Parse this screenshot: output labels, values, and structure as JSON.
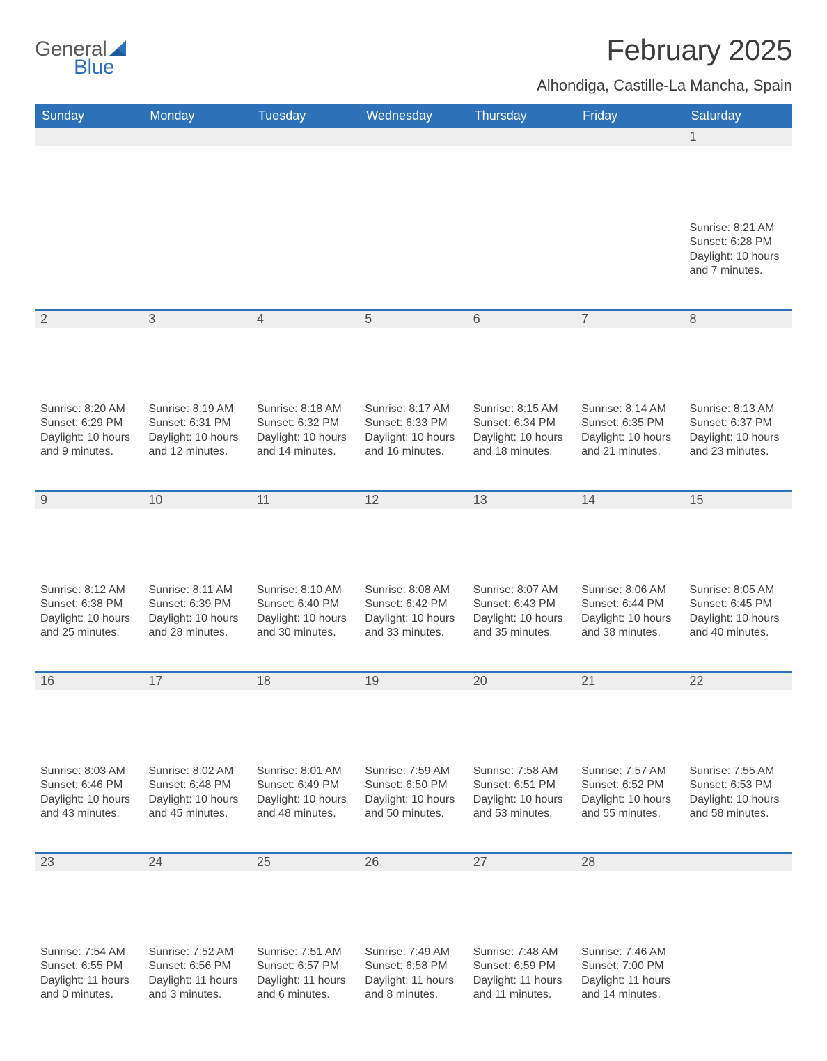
{
  "logo": {
    "text1": "General",
    "text2": "Blue",
    "sail_color": "#2d72b8"
  },
  "title": "February 2025",
  "location": "Alhondiga, Castille-La Mancha, Spain",
  "colors": {
    "header_bg": "#2d72b8",
    "header_text": "#ffffff",
    "daynum_bg": "#eeeeee",
    "daynum_border": "#2d72b8",
    "body_text": "#3c3c3c",
    "background": "#ffffff"
  },
  "weekdays": [
    "Sunday",
    "Monday",
    "Tuesday",
    "Wednesday",
    "Thursday",
    "Friday",
    "Saturday"
  ],
  "labels": {
    "sunrise": "Sunrise:",
    "sunset": "Sunset:",
    "daylight": "Daylight:"
  },
  "weeks": [
    [
      null,
      null,
      null,
      null,
      null,
      null,
      {
        "day": 1,
        "sunrise": "8:21 AM",
        "sunset": "6:28 PM",
        "daylight": "10 hours and 7 minutes."
      }
    ],
    [
      {
        "day": 2,
        "sunrise": "8:20 AM",
        "sunset": "6:29 PM",
        "daylight": "10 hours and 9 minutes."
      },
      {
        "day": 3,
        "sunrise": "8:19 AM",
        "sunset": "6:31 PM",
        "daylight": "10 hours and 12 minutes."
      },
      {
        "day": 4,
        "sunrise": "8:18 AM",
        "sunset": "6:32 PM",
        "daylight": "10 hours and 14 minutes."
      },
      {
        "day": 5,
        "sunrise": "8:17 AM",
        "sunset": "6:33 PM",
        "daylight": "10 hours and 16 minutes."
      },
      {
        "day": 6,
        "sunrise": "8:15 AM",
        "sunset": "6:34 PM",
        "daylight": "10 hours and 18 minutes."
      },
      {
        "day": 7,
        "sunrise": "8:14 AM",
        "sunset": "6:35 PM",
        "daylight": "10 hours and 21 minutes."
      },
      {
        "day": 8,
        "sunrise": "8:13 AM",
        "sunset": "6:37 PM",
        "daylight": "10 hours and 23 minutes."
      }
    ],
    [
      {
        "day": 9,
        "sunrise": "8:12 AM",
        "sunset": "6:38 PM",
        "daylight": "10 hours and 25 minutes."
      },
      {
        "day": 10,
        "sunrise": "8:11 AM",
        "sunset": "6:39 PM",
        "daylight": "10 hours and 28 minutes."
      },
      {
        "day": 11,
        "sunrise": "8:10 AM",
        "sunset": "6:40 PM",
        "daylight": "10 hours and 30 minutes."
      },
      {
        "day": 12,
        "sunrise": "8:08 AM",
        "sunset": "6:42 PM",
        "daylight": "10 hours and 33 minutes."
      },
      {
        "day": 13,
        "sunrise": "8:07 AM",
        "sunset": "6:43 PM",
        "daylight": "10 hours and 35 minutes."
      },
      {
        "day": 14,
        "sunrise": "8:06 AM",
        "sunset": "6:44 PM",
        "daylight": "10 hours and 38 minutes."
      },
      {
        "day": 15,
        "sunrise": "8:05 AM",
        "sunset": "6:45 PM",
        "daylight": "10 hours and 40 minutes."
      }
    ],
    [
      {
        "day": 16,
        "sunrise": "8:03 AM",
        "sunset": "6:46 PM",
        "daylight": "10 hours and 43 minutes."
      },
      {
        "day": 17,
        "sunrise": "8:02 AM",
        "sunset": "6:48 PM",
        "daylight": "10 hours and 45 minutes."
      },
      {
        "day": 18,
        "sunrise": "8:01 AM",
        "sunset": "6:49 PM",
        "daylight": "10 hours and 48 minutes."
      },
      {
        "day": 19,
        "sunrise": "7:59 AM",
        "sunset": "6:50 PM",
        "daylight": "10 hours and 50 minutes."
      },
      {
        "day": 20,
        "sunrise": "7:58 AM",
        "sunset": "6:51 PM",
        "daylight": "10 hours and 53 minutes."
      },
      {
        "day": 21,
        "sunrise": "7:57 AM",
        "sunset": "6:52 PM",
        "daylight": "10 hours and 55 minutes."
      },
      {
        "day": 22,
        "sunrise": "7:55 AM",
        "sunset": "6:53 PM",
        "daylight": "10 hours and 58 minutes."
      }
    ],
    [
      {
        "day": 23,
        "sunrise:": "7:54 AM",
        "sunset": "6:55 PM",
        "daylight": "11 hours and 0 minutes."
      },
      {
        "day": 24,
        "sunrise": "7:52 AM",
        "sunset": "6:56 PM",
        "daylight": "11 hours and 3 minutes."
      },
      {
        "day": 25,
        "sunrise": "7:51 AM",
        "sunset": "6:57 PM",
        "daylight": "11 hours and 6 minutes."
      },
      {
        "day": 26,
        "sunrise": "7:49 AM",
        "sunset": "6:58 PM",
        "daylight": "11 hours and 8 minutes."
      },
      {
        "day": 27,
        "sunrise": "7:48 AM",
        "sunset": "6:59 PM",
        "daylight": "11 hours and 11 minutes."
      },
      {
        "day": 28,
        "sunrise": "7:46 AM",
        "sunset": "7:00 PM",
        "daylight": "11 hours and 14 minutes."
      },
      null
    ]
  ],
  "_fix_weeks4_0": {
    "day": 23,
    "sunrise": "7:54 AM",
    "sunset": "6:55 PM",
    "daylight": "11 hours and 0 minutes."
  }
}
